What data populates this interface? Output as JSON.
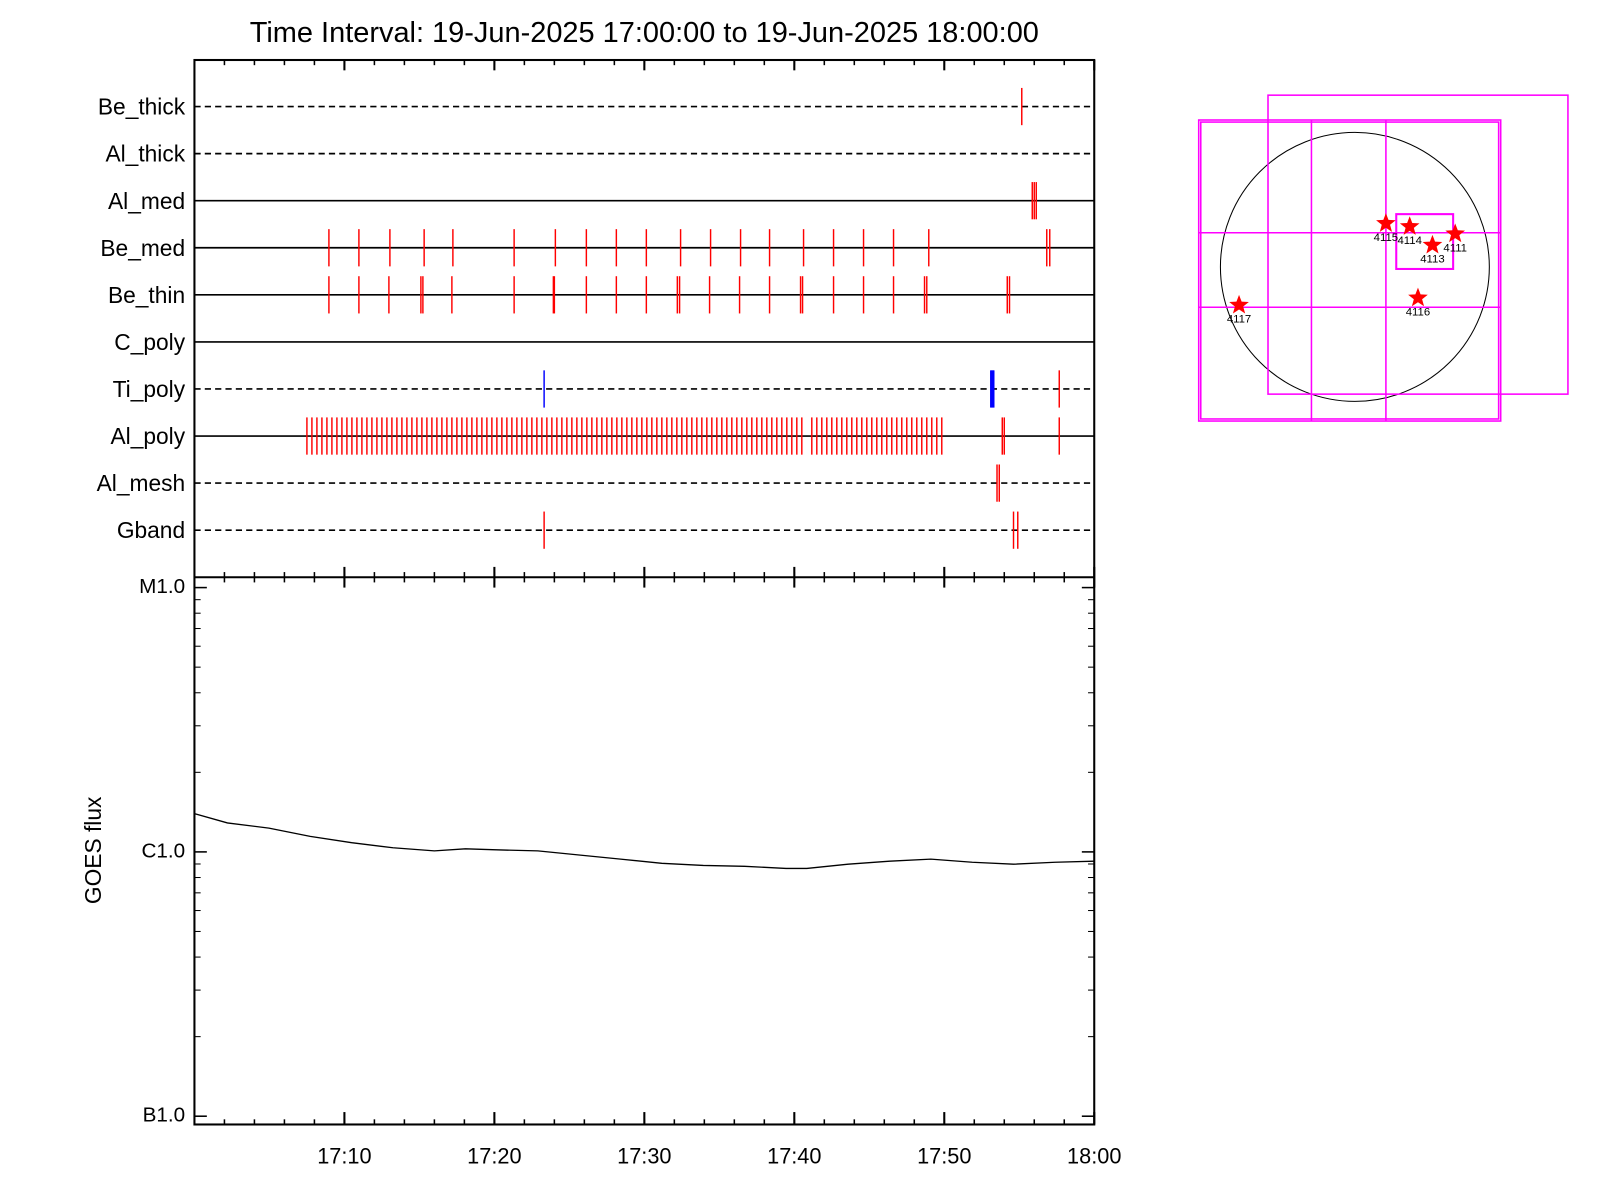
{
  "chart_data": [
    {
      "type": "event",
      "title": "Time Interval: 19-Jun-2025 17:00:00 to 19-Jun-2025 18:00:00",
      "xlim": [
        "17:00",
        "18:00"
      ],
      "rows": [
        {
          "name": "Be_thick",
          "line": "dashed",
          "events": [
            {
              "color": "#ff0000",
              "x": [
                "17:55:10"
              ]
            }
          ]
        },
        {
          "name": "Al_thick",
          "line": "dashed",
          "events": []
        },
        {
          "name": "Al_med",
          "line": "solid",
          "events": [
            {
              "color": "#ff0000",
              "x": [
                "17:55:52",
                "17:56:00",
                "17:56:08"
              ]
            }
          ]
        },
        {
          "name": "Be_med",
          "line": "solid",
          "events": [
            {
              "color": "#ff0000",
              "x": [
                "17:08:58",
                "17:10:58",
                "17:13:02",
                "17:15:19",
                "17:17:14",
                "17:21:19",
                "17:24:04",
                "17:26:08",
                "17:28:08",
                "17:30:08",
                "17:32:25",
                "17:34:25",
                "17:36:25",
                "17:38:21",
                "17:40:37",
                "17:42:37",
                "17:44:37",
                "17:46:37",
                "17:48:58",
                "17:56:50",
                "17:57:02"
              ]
            }
          ]
        },
        {
          "name": "Be_thin",
          "line": "solid",
          "events": [
            {
              "color": "#ff0000",
              "x": [
                "17:08:58",
                "17:10:58",
                "17:12:58",
                "17:15:06",
                "17:15:14",
                "17:17:10",
                "17:21:19",
                "17:23:56",
                "17:24:00",
                "17:26:08",
                "17:28:08",
                "17:30:08",
                "17:32:12",
                "17:32:21",
                "17:34:21",
                "17:36:21",
                "17:38:21",
                "17:40:25",
                "17:40:33",
                "17:42:37",
                "17:44:37",
                "17:46:37",
                "17:48:41",
                "17:48:50",
                "17:54:12",
                "17:54:21"
              ]
            }
          ]
        },
        {
          "name": "C_poly",
          "line": "solid",
          "events": []
        },
        {
          "name": "Ti_poly",
          "line": "dashed",
          "events": [
            {
              "color": "#0000ff",
              "x": [
                "17:23:19",
                "17:53:06",
                "17:53:10",
                "17:53:14",
                "17:53:18"
              ]
            },
            {
              "color": "#ff0000",
              "x": [
                "17:57:40"
              ]
            }
          ]
        },
        {
          "name": "Al_poly",
          "line": "solid",
          "events": [
            {
              "color": "#ff0000",
              "x": [
                "17:07:30",
                "17:07:50",
                "17:08:10",
                "17:08:30",
                "17:08:50",
                "17:09:10",
                "17:09:30",
                "17:09:50",
                "17:10:10",
                "17:10:30",
                "17:10:50",
                "17:11:10",
                "17:11:30",
                "17:11:50",
                "17:12:10",
                "17:12:30",
                "17:12:50",
                "17:13:10",
                "17:13:30",
                "17:13:50",
                "17:14:10",
                "17:14:30",
                "17:14:50",
                "17:15:10",
                "17:15:30",
                "17:15:50",
                "17:16:10",
                "17:16:30",
                "17:16:50",
                "17:17:10",
                "17:17:30",
                "17:17:50",
                "17:18:10",
                "17:18:30",
                "17:18:50",
                "17:19:10",
                "17:19:30",
                "17:19:50",
                "17:20:10",
                "17:20:30",
                "17:20:50",
                "17:21:10",
                "17:21:30",
                "17:21:50",
                "17:22:10",
                "17:22:30",
                "17:22:50",
                "17:23:10",
                "17:23:30",
                "17:23:50",
                "17:24:10",
                "17:24:30",
                "17:24:50",
                "17:25:10",
                "17:25:30",
                "17:25:50",
                "17:26:10",
                "17:26:30",
                "17:26:50",
                "17:27:10",
                "17:27:30",
                "17:27:50",
                "17:28:10",
                "17:28:30",
                "17:28:50",
                "17:29:10",
                "17:29:30",
                "17:29:50",
                "17:30:10",
                "17:30:30",
                "17:30:50",
                "17:31:10",
                "17:31:30",
                "17:31:50",
                "17:32:10",
                "17:32:30",
                "17:32:50",
                "17:33:10",
                "17:33:30",
                "17:33:50",
                "17:34:10",
                "17:34:30",
                "17:34:50",
                "17:35:10",
                "17:35:30",
                "17:35:50",
                "17:36:10",
                "17:36:30",
                "17:36:50",
                "17:37:10",
                "17:37:30",
                "17:37:50",
                "17:38:10",
                "17:38:30",
                "17:38:50",
                "17:39:10",
                "17:39:30",
                "17:39:50",
                "17:40:10",
                "17:40:30",
                "17:41:10",
                "17:41:30",
                "17:41:50",
                "17:42:10",
                "17:42:30",
                "17:42:50",
                "17:43:10",
                "17:43:30",
                "17:43:50",
                "17:44:10",
                "17:44:30",
                "17:44:50",
                "17:45:10",
                "17:45:30",
                "17:45:50",
                "17:46:10",
                "17:46:30",
                "17:46:50",
                "17:47:10",
                "17:47:30",
                "17:47:50",
                "17:48:10",
                "17:48:30",
                "17:48:50",
                "17:49:10",
                "17:49:30",
                "17:49:50",
                "17:53:52",
                "17:54:00",
                "17:57:40"
              ]
            }
          ]
        },
        {
          "name": "Al_mesh",
          "line": "dashed",
          "events": [
            {
              "color": "#ff0000",
              "x": [
                "17:53:31",
                "17:53:40"
              ]
            }
          ]
        },
        {
          "name": "Gband",
          "line": "dashed",
          "events": [
            {
              "color": "#ff0000",
              "x": [
                "17:23:19",
                "17:54:37",
                "17:54:54"
              ]
            }
          ]
        }
      ]
    },
    {
      "type": "line",
      "ylabel": "GOES flux",
      "ylog": true,
      "color": "#000000",
      "xlim": [
        "17:00",
        "18:00"
      ],
      "xticks": [
        "17:10",
        "17:20",
        "17:30",
        "17:40",
        "17:50",
        "18:00"
      ],
      "ylim": [
        1e-07,
        1e-05
      ],
      "yticks": [
        {
          "value": 1e-05,
          "label": "M1.0"
        },
        {
          "value": 1e-06,
          "label": "C1.0"
        },
        {
          "value": 1e-07,
          "label": "B1.0"
        }
      ],
      "x": [
        "17:00:00",
        "17:02:12",
        "17:04:58",
        "17:07:43",
        "17:10:29",
        "17:13:14",
        "17:16:00",
        "17:18:04",
        "17:20:08",
        "17:22:54",
        "17:25:39",
        "17:28:25",
        "17:31:10",
        "17:33:56",
        "17:36:41",
        "17:39:27",
        "17:40:50",
        "17:43:35",
        "17:46:21",
        "17:49:06",
        "17:51:52",
        "17:54:37",
        "17:57:23",
        "18:00:00"
      ],
      "values": [
        1.396e-06,
        1.287e-06,
        1.23e-06,
        1.145e-06,
        1.084e-06,
        1.037e-06,
        1.009e-06,
        1.027e-06,
        1.018e-06,
        1.009e-06,
        9.73e-07,
        9.39e-07,
        9.06e-07,
        8.89e-07,
        8.82e-07,
        8.66e-07,
        8.66e-07,
        8.98e-07,
        9.22e-07,
        9.39e-07,
        9.14e-07,
        8.98e-07,
        9.14e-07,
        9.22e-07
      ]
    }
  ],
  "map": {
    "region_labels": [
      "4115",
      "4114",
      "4113",
      "4111",
      "4116",
      "4117"
    ]
  }
}
